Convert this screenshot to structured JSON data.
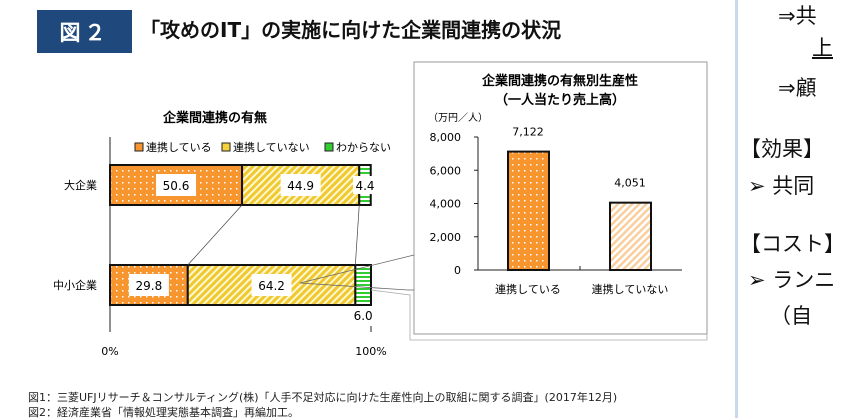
{
  "header": {
    "badge": "図２",
    "title": "「攻めのIT」の実施に向けた企業間連携の状況"
  },
  "chart_data": [
    {
      "type": "bar",
      "orientation": "horizontal",
      "stacked": true,
      "title": "企業間連携の有無",
      "categories": [
        "大企業",
        "中小企業"
      ],
      "series": [
        {
          "name": "連携している",
          "values": [
            50.6,
            29.8
          ],
          "color": "#f7962f"
        },
        {
          "name": "連携していない",
          "values": [
            44.9,
            64.2
          ],
          "color": "#f5d23c"
        },
        {
          "name": "わからない",
          "values": [
            4.4,
            6.0
          ],
          "color": "#33cc33"
        }
      ],
      "xlim": [
        0,
        100
      ],
      "xticks": [
        "0%",
        "100%"
      ],
      "legend": "top"
    },
    {
      "type": "bar",
      "title": "企業間連携の有無別生産性",
      "subtitle": "（一人当たり売上高）",
      "ylabel": "（万円／人）",
      "categories": [
        "連携している",
        "連携していない"
      ],
      "values": [
        7122,
        4051
      ],
      "value_labels": [
        "7,122",
        "4,051"
      ],
      "ylim": [
        0,
        8000
      ],
      "yticks": [
        "0",
        "2,000",
        "4,000",
        "6,000",
        "8,000"
      ],
      "colors": [
        "#f7962f",
        "#f9cfa0"
      ]
    }
  ],
  "footnotes": [
    "図1：三菱UFJリサーチ＆コンサルティング(株)「人手不足対応に向けた生産性向上の取組に関する調査」(2017年12月)",
    "図2：経済産業省「情報処理実態基本調査」再編加工。"
  ],
  "side": {
    "lines": [
      "⇒共",
      "上",
      "⇒顧",
      "【効果】",
      "➢ 共同",
      "【コスト】",
      "➢ ランニ",
      "（自"
    ]
  }
}
